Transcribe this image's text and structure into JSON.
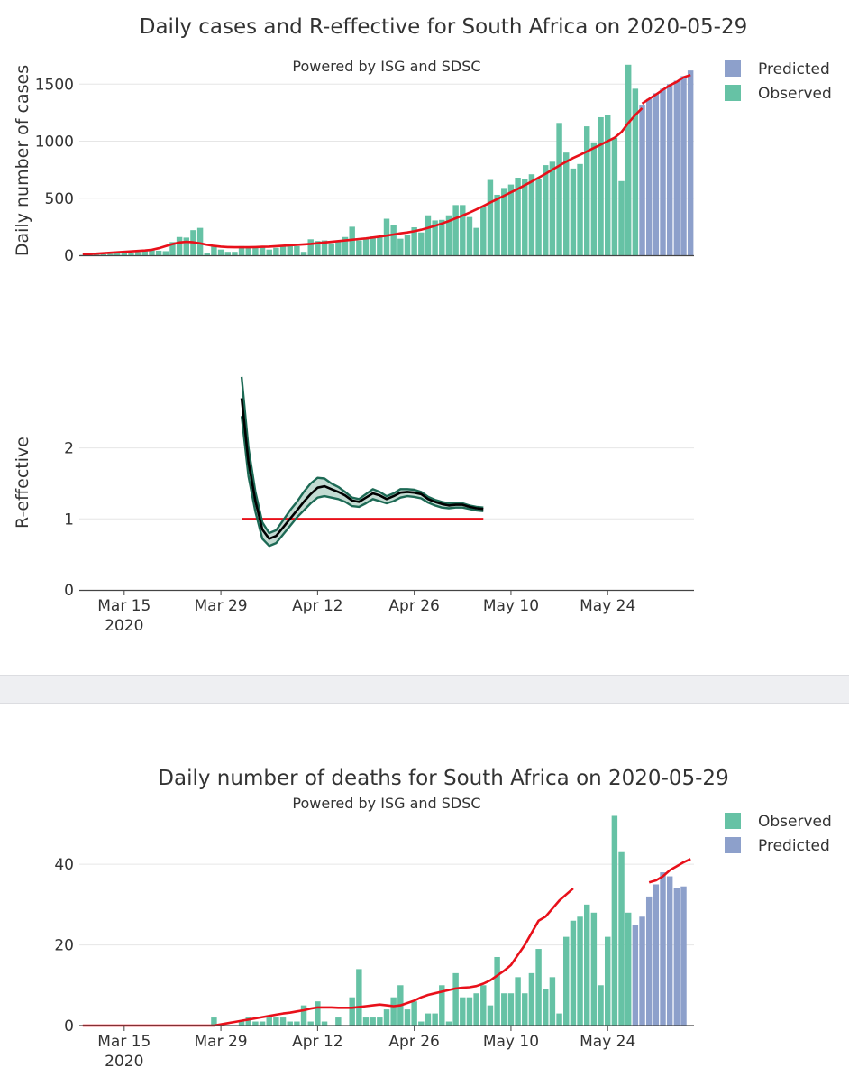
{
  "colors": {
    "observed": "#66c2a5",
    "predicted": "#8da0cb",
    "smooth": "#e8101a",
    "reff_line": "#000000",
    "reff_band_edge": "#1d6a55",
    "reff_band_fill": "#c3dbd2",
    "grid": "#e6e6e6",
    "axis": "#444444"
  },
  "chart_data": [
    {
      "id": "cases",
      "type": "bar",
      "title": "Daily cases and R-effective for South Africa on 2020-05-29",
      "subtitle": "Powered by ISG and SDSC",
      "ylabel": "Daily number of cases",
      "ylim": [
        0,
        1700
      ],
      "yticks": [
        0,
        500,
        1000,
        1500
      ],
      "ytick_labels": [
        "0",
        "500",
        "1000",
        "1500"
      ],
      "legend": [
        {
          "name": "Predicted",
          "color": "#8da0cb"
        },
        {
          "name": "Observed",
          "color": "#66c2a5"
        }
      ],
      "legend_position": "top-right",
      "start_date": "2020-03-09",
      "observed": [
        2,
        4,
        6,
        8,
        12,
        16,
        18,
        22,
        28,
        35,
        45,
        40,
        36,
        116,
        160,
        155,
        220,
        240,
        23,
        85,
        50,
        30,
        30,
        80,
        65,
        70,
        80,
        50,
        65,
        90,
        100,
        80,
        30,
        140,
        125,
        130,
        105,
        125,
        160,
        250,
        130,
        150,
        165,
        170,
        320,
        265,
        145,
        180,
        245,
        200,
        350,
        305,
        310,
        350,
        440,
        440,
        335,
        240,
        420,
        660,
        530,
        590,
        620,
        680,
        670,
        710,
        670,
        790,
        820,
        1160,
        900,
        760,
        800,
        1130,
        990,
        1210,
        1230,
        1030,
        650,
        1670,
        1460
      ],
      "predicted_start_index": 81,
      "predicted": [
        1320,
        1370,
        1420,
        1460,
        1500,
        1530,
        1570,
        1620
      ],
      "smooth_observed": [
        6,
        10,
        14,
        18,
        22,
        26,
        30,
        34,
        38,
        42,
        48,
        62,
        80,
        98,
        112,
        118,
        114,
        104,
        92,
        82,
        76,
        72,
        70,
        70,
        70,
        72,
        74,
        76,
        80,
        84,
        88,
        92,
        96,
        100,
        106,
        112,
        118,
        124,
        130,
        136,
        142,
        148,
        156,
        164,
        172,
        182,
        192,
        200,
        210,
        224,
        240,
        258,
        278,
        300,
        324,
        348,
        374,
        402,
        432,
        462,
        492,
        522,
        552,
        582,
        614,
        646,
        680,
        714,
        750,
        786,
        820,
        852,
        880,
        910,
        940,
        970,
        1000,
        1030,
        1080,
        1160,
        1230,
        1290
      ],
      "smooth_predicted_start_index": 81,
      "smooth_predicted": [
        1330,
        1370,
        1410,
        1450,
        1490,
        1520,
        1560,
        1580
      ]
    },
    {
      "id": "reff",
      "type": "line",
      "ylabel": "R-effective",
      "ylim": [
        0,
        3.05
      ],
      "yticks": [
        0,
        1,
        2
      ],
      "ytick_labels": [
        "0",
        "1",
        "2"
      ],
      "x_ticks": [
        "Mar 15",
        "Mar 29",
        "Apr 12",
        "Apr 26",
        "May 10",
        "May 24"
      ],
      "x_tick_sub": "2020",
      "x_tick_day_index": [
        6,
        20,
        34,
        48,
        62,
        76
      ],
      "threshold": 1,
      "r_start_index": 23,
      "r_mean": [
        2.7,
        1.8,
        1.25,
        0.85,
        0.72,
        0.76,
        0.88,
        1.0,
        1.12,
        1.24,
        1.35,
        1.44,
        1.46,
        1.42,
        1.38,
        1.33,
        1.26,
        1.24,
        1.3,
        1.36,
        1.33,
        1.28,
        1.32,
        1.37,
        1.38,
        1.37,
        1.35,
        1.28,
        1.24,
        1.21,
        1.19,
        1.2,
        1.2,
        1.17,
        1.15,
        1.14
      ],
      "r_upper": [
        3.0,
        2.0,
        1.38,
        0.95,
        0.8,
        0.84,
        0.98,
        1.12,
        1.24,
        1.38,
        1.5,
        1.58,
        1.57,
        1.5,
        1.45,
        1.38,
        1.3,
        1.28,
        1.35,
        1.42,
        1.38,
        1.32,
        1.36,
        1.42,
        1.42,
        1.41,
        1.38,
        1.31,
        1.27,
        1.24,
        1.22,
        1.22,
        1.22,
        1.19,
        1.17,
        1.16
      ],
      "r_lower": [
        2.45,
        1.6,
        1.1,
        0.72,
        0.62,
        0.66,
        0.78,
        0.9,
        1.02,
        1.12,
        1.22,
        1.3,
        1.32,
        1.3,
        1.28,
        1.24,
        1.18,
        1.17,
        1.22,
        1.28,
        1.25,
        1.22,
        1.25,
        1.3,
        1.32,
        1.31,
        1.29,
        1.23,
        1.19,
        1.16,
        1.15,
        1.16,
        1.16,
        1.14,
        1.12,
        1.11
      ]
    },
    {
      "id": "deaths",
      "type": "bar",
      "title": "Daily number of deaths for South Africa on 2020-05-29",
      "subtitle": "Powered by ISG and SDSC",
      "ylim": [
        0,
        53
      ],
      "yticks": [
        0,
        20,
        40
      ],
      "ytick_labels": [
        "0",
        "20",
        "40"
      ],
      "x_ticks": [
        "Mar 15",
        "Mar 29",
        "Apr 12",
        "Apr 26",
        "May 10",
        "May 24"
      ],
      "x_tick_sub": "2020",
      "x_tick_day_index": [
        6,
        20,
        34,
        48,
        62,
        76
      ],
      "legend": [
        {
          "name": "Observed",
          "color": "#66c2a5"
        },
        {
          "name": "Predicted",
          "color": "#8da0cb"
        }
      ],
      "legend_position": "top-right",
      "observed": [
        0,
        0,
        0,
        0,
        0,
        0,
        0,
        0,
        0,
        0,
        0,
        0,
        0,
        0,
        0,
        0,
        0,
        0,
        0,
        2,
        0,
        0,
        0,
        1,
        2,
        1,
        1,
        2,
        2,
        2,
        1,
        1,
        5,
        1,
        6,
        1,
        0,
        2,
        0,
        7,
        14,
        2,
        2,
        2,
        4,
        7,
        10,
        4,
        6,
        1,
        3,
        3,
        10,
        1,
        13,
        7,
        7,
        8,
        10,
        5,
        17,
        8,
        8,
        12,
        8,
        13,
        19,
        9,
        12,
        3,
        22,
        26,
        27,
        30,
        28,
        10,
        22,
        52,
        43,
        28
      ],
      "predicted_start_index": 80,
      "predicted": [
        25,
        27,
        32,
        35,
        38,
        37,
        34,
        34.5
      ],
      "smooth_observed": [
        0,
        0,
        0,
        0,
        0,
        0,
        0,
        0,
        0,
        0,
        0,
        0,
        0,
        0,
        0,
        0,
        0,
        0,
        0,
        0,
        0.3,
        0.6,
        0.9,
        1.2,
        1.5,
        1.8,
        2.1,
        2.4,
        2.7,
        3.0,
        3.2,
        3.5,
        3.8,
        4.2,
        4.5,
        4.5,
        4.5,
        4.4,
        4.4,
        4.4,
        4.6,
        4.8,
        5.0,
        5.2,
        5.0,
        4.8,
        5.0,
        5.6,
        6.2,
        7.0,
        7.6,
        8.0,
        8.4,
        8.8,
        9.2,
        9.4,
        9.5,
        9.8,
        10.4,
        11.2,
        12.4,
        13.6,
        15.0,
        17.5,
        20.0,
        23.0,
        26.0,
        27.0,
        29.0,
        31.0,
        32.5,
        34.0
      ],
      "smooth_observed_start": 0,
      "smooth_predicted_start_index": 82,
      "smooth_predicted": [
        35.5,
        36,
        37,
        38.5,
        39.5,
        40.5,
        41.3
      ]
    }
  ]
}
